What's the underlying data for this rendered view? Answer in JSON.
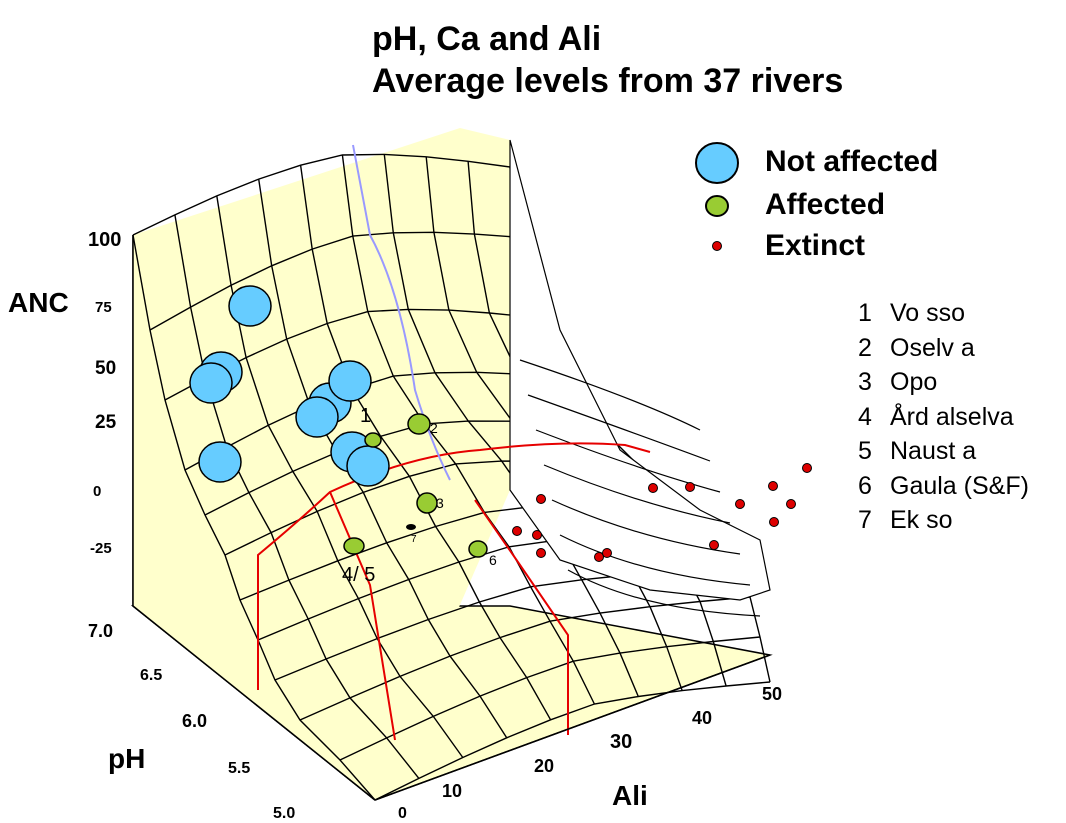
{
  "colors": {
    "surface_fill": "#ffffcc",
    "grid_line": "#000000",
    "not_affected": "#66ccff",
    "affected": "#99cc33",
    "extinct": "#dd0000",
    "threshold_red": "#e60000",
    "threshold_blue": "#9999ff"
  },
  "chart_data": {
    "type": "scatter",
    "title": "pH, Ca and Ali",
    "subtitle": "Average levels from 37 rivers",
    "axes": {
      "z": {
        "label": "ANC",
        "ticks": [
          "100",
          "75",
          "50",
          "25",
          "0",
          "-25"
        ],
        "range": [
          -25,
          100
        ]
      },
      "ph": {
        "label": "pH",
        "ticks": [
          "7.0",
          "6.5",
          "6.0",
          "5.5",
          "5.0"
        ],
        "range": [
          5.0,
          7.0
        ]
      },
      "ali": {
        "label": "Ali",
        "ticks": [
          "0",
          "10",
          "20",
          "30",
          "40",
          "50"
        ],
        "range": [
          0,
          50
        ]
      }
    },
    "legend": {
      "placement": "top-right",
      "entries": [
        {
          "name": "Not affected",
          "icon": "large-blue-circle"
        },
        {
          "name": "Affected",
          "icon": "medium-green-circle"
        },
        {
          "name": "Extinct",
          "icon": "small-red-dot"
        }
      ]
    },
    "river_list": [
      {
        "num": "1",
        "name": "Vo sso"
      },
      {
        "num": "2",
        "name": "Oselv a"
      },
      {
        "num": "3",
        "name": "Opo"
      },
      {
        "num": "4",
        "name": "Ård alselva"
      },
      {
        "num": "5",
        "name": "Naust a"
      },
      {
        "num": "6",
        "name": "Gaula (S&F)"
      },
      {
        "num": "7",
        "name": "Ek so"
      }
    ],
    "point_labels": [
      "1",
      "2",
      "3",
      "4/ 5",
      "6",
      "7"
    ]
  }
}
